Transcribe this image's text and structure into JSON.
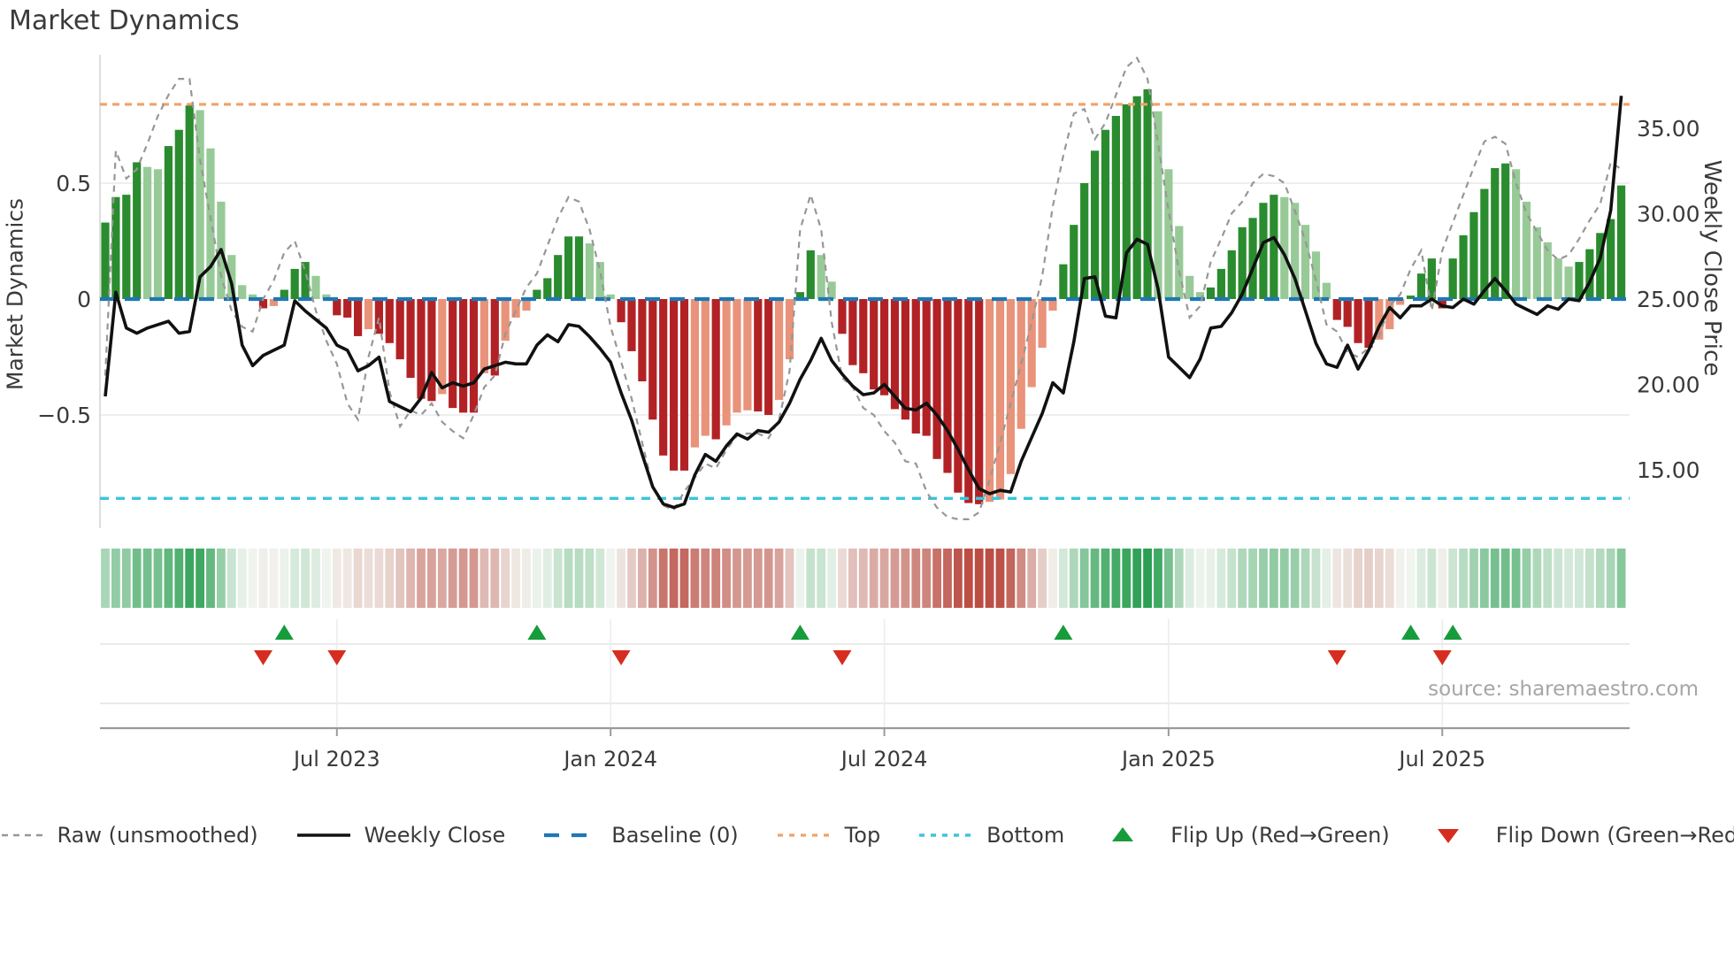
{
  "page": {
    "title": "Market Dynamics",
    "source": "source: sharemaestro.com"
  },
  "chart_data": {
    "type": "bar",
    "subtype": "momentum-oscillator-with-price-overlay",
    "title": "Market Dynamics",
    "xlabel": "",
    "ylabel_left": "Market Dynamics",
    "ylabel_right": "Weekly Close Price",
    "start_date": "2023-01-30",
    "week_interval_days": 7,
    "n_weeks": 145,
    "x_ticks": [
      {
        "label": "Jul 2023",
        "week": 22
      },
      {
        "label": "Jan 2024",
        "week": 48
      },
      {
        "label": "Jul 2024",
        "week": 74
      },
      {
        "label": "Jan 2025",
        "week": 101
      },
      {
        "label": "Jul 2025",
        "week": 127
      }
    ],
    "left_axis": {
      "ticks": [
        "0.5",
        "0",
        "−0.5"
      ],
      "tick_values": [
        0.5,
        0,
        -0.5
      ],
      "range": [
        -0.99,
        1.055
      ]
    },
    "right_axis": {
      "ticks": [
        "35.00",
        "30.00",
        "25.00",
        "20.00",
        "15.00"
      ],
      "tick_values": [
        35,
        30,
        25,
        20,
        15
      ]
    },
    "baseline": 0,
    "top_line": 0.84,
    "bottom_line": -0.86,
    "grid": "horizontal-only",
    "legend_position": "bottom-center",
    "series": [
      {
        "name": "Market Dynamics (bars)",
        "axis": "left",
        "values": [
          0.33,
          0.44,
          0.45,
          0.59,
          0.57,
          0.56,
          0.66,
          0.73,
          0.835,
          0.815,
          0.65,
          0.42,
          0.19,
          0.06,
          0.02,
          -0.04,
          -0.03,
          0.04,
          0.13,
          0.16,
          0.1,
          0.02,
          -0.07,
          -0.08,
          -0.16,
          -0.13,
          -0.15,
          -0.19,
          -0.26,
          -0.34,
          -0.43,
          -0.44,
          -0.41,
          -0.47,
          -0.49,
          -0.49,
          -0.32,
          -0.33,
          -0.18,
          -0.08,
          -0.05,
          0.04,
          0.09,
          0.19,
          0.27,
          0.27,
          0.24,
          0.16,
          0.02,
          -0.1,
          -0.225,
          -0.355,
          -0.52,
          -0.675,
          -0.74,
          -0.74,
          -0.64,
          -0.59,
          -0.605,
          -0.545,
          -0.49,
          -0.48,
          -0.485,
          -0.5,
          -0.435,
          -0.26,
          0.03,
          0.21,
          0.19,
          0.075,
          -0.15,
          -0.285,
          -0.32,
          -0.39,
          -0.415,
          -0.475,
          -0.52,
          -0.58,
          -0.59,
          -0.69,
          -0.75,
          -0.835,
          -0.88,
          -0.885,
          -0.875,
          -0.865,
          -0.755,
          -0.56,
          -0.38,
          -0.21,
          -0.05,
          0.15,
          0.32,
          0.5,
          0.64,
          0.73,
          0.79,
          0.84,
          0.875,
          0.905,
          0.81,
          0.56,
          0.315,
          0.1,
          0.03,
          0.05,
          0.13,
          0.21,
          0.31,
          0.35,
          0.415,
          0.45,
          0.44,
          0.415,
          0.32,
          0.205,
          0.07,
          -0.09,
          -0.12,
          -0.19,
          -0.21,
          -0.175,
          -0.13,
          -0.025,
          0.015,
          0.11,
          0.175,
          -0.04,
          0.175,
          0.275,
          0.375,
          0.475,
          0.565,
          0.585,
          0.56,
          0.42,
          0.31,
          0.245,
          0.175,
          0.14,
          0.16,
          0.215,
          0.285,
          0.345,
          0.49
        ]
      },
      {
        "name": "Raw (unsmoothed)",
        "axis": "left",
        "values": [
          -0.33,
          0.64,
          0.52,
          0.56,
          0.67,
          0.79,
          0.88,
          0.95,
          0.95,
          0.6,
          0.35,
          0.1,
          -0.05,
          -0.12,
          -0.14,
          0.0,
          0.08,
          0.2,
          0.25,
          0.12,
          -0.05,
          -0.18,
          -0.28,
          -0.45,
          -0.52,
          -0.25,
          -0.08,
          -0.4,
          -0.55,
          -0.48,
          -0.5,
          -0.45,
          -0.53,
          -0.57,
          -0.6,
          -0.5,
          -0.38,
          -0.33,
          -0.15,
          -0.05,
          0.05,
          0.11,
          0.23,
          0.35,
          0.44,
          0.42,
          0.3,
          0.12,
          -0.12,
          -0.27,
          -0.43,
          -0.62,
          -0.81,
          -0.89,
          -0.91,
          -0.83,
          -0.77,
          -0.71,
          -0.73,
          -0.65,
          -0.59,
          -0.58,
          -0.58,
          -0.6,
          -0.52,
          -0.31,
          0.3,
          0.45,
          0.3,
          -0.1,
          -0.34,
          -0.38,
          -0.47,
          -0.5,
          -0.57,
          -0.62,
          -0.7,
          -0.71,
          -0.83,
          -0.9,
          -0.94,
          -0.95,
          -0.95,
          -0.92,
          -0.78,
          -0.62,
          -0.45,
          -0.28,
          -0.1,
          0.1,
          0.4,
          0.62,
          0.8,
          0.82,
          0.69,
          0.76,
          0.88,
          1.0,
          1.04,
          0.95,
          0.67,
          0.38,
          0.12,
          -0.08,
          -0.03,
          0.16,
          0.26,
          0.37,
          0.42,
          0.5,
          0.54,
          0.53,
          0.5,
          0.38,
          0.25,
          0.08,
          -0.11,
          -0.14,
          -0.23,
          -0.25,
          -0.21,
          -0.16,
          -0.03,
          0.02,
          0.13,
          0.21,
          -0.05,
          0.21,
          0.33,
          0.45,
          0.57,
          0.68,
          0.7,
          0.67,
          0.5,
          0.37,
          0.29,
          0.21,
          0.17,
          0.19,
          0.26,
          0.34,
          0.41,
          0.59,
          0.56
        ]
      },
      {
        "name": "Weekly Close",
        "axis": "right",
        "values": [
          19.3,
          25.4,
          23.3,
          23.0,
          23.3,
          23.5,
          23.7,
          23.0,
          23.1,
          26.3,
          26.9,
          27.9,
          25.9,
          22.3,
          21.1,
          21.7,
          22.0,
          22.3,
          24.9,
          24.3,
          23.8,
          23.3,
          22.3,
          22.0,
          20.8,
          21.1,
          21.6,
          19.0,
          18.7,
          18.4,
          19.2,
          20.7,
          19.8,
          20.1,
          19.9,
          20.1,
          20.9,
          21.1,
          21.3,
          21.2,
          21.2,
          22.3,
          22.9,
          22.5,
          23.5,
          23.4,
          22.8,
          22.1,
          21.3,
          19.5,
          17.9,
          15.9,
          14.0,
          13.0,
          12.8,
          13.0,
          14.7,
          15.9,
          15.5,
          16.4,
          17.1,
          16.8,
          17.3,
          17.2,
          17.8,
          18.9,
          20.3,
          21.4,
          22.7,
          21.4,
          20.6,
          19.9,
          19.4,
          19.5,
          20.0,
          19.3,
          18.6,
          18.5,
          18.9,
          18.2,
          17.3,
          16.2,
          15.0,
          13.9,
          13.6,
          13.8,
          13.7,
          15.5,
          16.9,
          18.3,
          20.1,
          19.5,
          22.5,
          26.2,
          26.3,
          24.0,
          23.9,
          27.7,
          28.5,
          28.2,
          25.6,
          21.6,
          21.0,
          20.4,
          21.5,
          23.3,
          23.4,
          24.2,
          25.3,
          26.8,
          28.3,
          28.6,
          27.6,
          26.2,
          24.3,
          22.4,
          21.2,
          21.0,
          22.3,
          20.9,
          22.0,
          23.4,
          24.5,
          23.9,
          24.6,
          24.6,
          25.0,
          24.6,
          24.5,
          25.0,
          24.7,
          25.5,
          26.2,
          25.5,
          24.7,
          24.4,
          24.1,
          24.6,
          24.4,
          25.0,
          24.9,
          26.0,
          27.4,
          30.2,
          36.9
        ]
      }
    ],
    "flip_up_weeks": [
      17,
      41,
      66,
      91,
      124,
      128
    ],
    "flip_down_weeks": [
      15,
      22,
      49,
      70,
      117,
      127
    ],
    "heatmap": "bar values repeated as green/red intensity strip",
    "colors": {
      "bar_up_rising": "#2a8c2e",
      "bar_up_falling": "#97ca97",
      "bar_down_falling": "#b22225",
      "bar_down_rising": "#e9937a",
      "raw_line": "#979797",
      "close_line": "#111111",
      "baseline": "#1f77b4",
      "top_line": "#f2a16a",
      "bottom_line": "#3bc5dc",
      "flip_up_marker": "#179c3c",
      "flip_down_marker": "#d62d20",
      "grid": "#e8e8e8",
      "axis_line": "#d6d6d6",
      "bottom_axis": "#9a9a9a",
      "text": "#3a3a3a",
      "heat_pos_max": "#289e50",
      "heat_neg_max": "#b9463c",
      "heat_zero": "#f3f6f2"
    }
  },
  "legend": {
    "items": [
      {
        "key": "raw",
        "sample": "dash-gray",
        "label": "Raw (unsmoothed)"
      },
      {
        "key": "close",
        "sample": "solid-black",
        "label": "Weekly Close"
      },
      {
        "key": "baseline",
        "sample": "dash-blue",
        "label": "Baseline (0)"
      },
      {
        "key": "top",
        "sample": "dot-orange",
        "label": "Top"
      },
      {
        "key": "bottom",
        "sample": "dot-cyan",
        "label": "Bottom"
      },
      {
        "key": "flipup",
        "sample": "tri-up",
        "label": "Flip Up (Red→Green)"
      },
      {
        "key": "flipdown",
        "sample": "tri-down",
        "label": "Flip Down (Green→Red)"
      }
    ]
  }
}
